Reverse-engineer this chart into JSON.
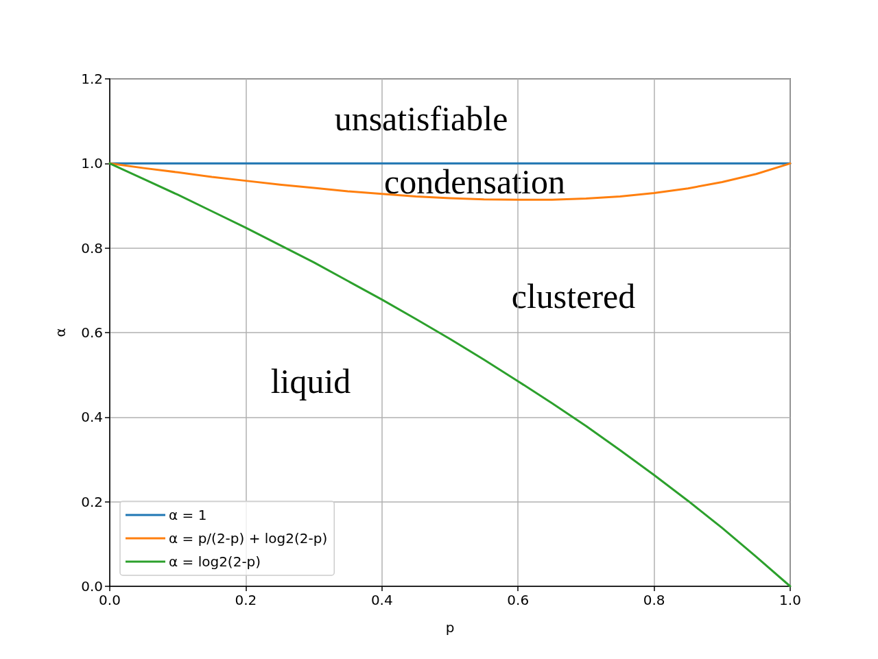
{
  "chart_data": {
    "type": "line",
    "xlabel": "p",
    "ylabel": "α",
    "xlim": [
      0,
      1
    ],
    "ylim": [
      0,
      1.2
    ],
    "xticks": [
      {
        "value": 0,
        "label": "0.0"
      },
      {
        "value": 0.2,
        "label": "0.2"
      },
      {
        "value": 0.4,
        "label": "0.4"
      },
      {
        "value": 0.6,
        "label": "0.6"
      },
      {
        "value": 0.8,
        "label": "0.8"
      },
      {
        "value": 1,
        "label": "1.0"
      }
    ],
    "yticks": [
      {
        "value": 0,
        "label": "0.0"
      },
      {
        "value": 0.2,
        "label": "0.2"
      },
      {
        "value": 0.4,
        "label": "0.4"
      },
      {
        "value": 0.6,
        "label": "0.6"
      },
      {
        "value": 0.8,
        "label": "0.8"
      },
      {
        "value": 1,
        "label": "1.0"
      },
      {
        "value": 1.2,
        "label": "1.2"
      }
    ],
    "x": [
      0,
      0.05,
      0.1,
      0.15,
      0.2,
      0.25,
      0.3,
      0.35,
      0.4,
      0.45,
      0.5,
      0.55,
      0.6,
      0.65,
      0.7,
      0.75,
      0.8,
      0.85,
      0.9,
      0.95,
      1
    ],
    "series": [
      {
        "name": "α = 1",
        "color": "#1f77b4",
        "values": [
          1,
          1,
          1,
          1,
          1,
          1,
          1,
          1,
          1,
          1,
          1,
          1,
          1,
          1,
          1,
          1,
          1,
          1,
          1,
          1,
          1
        ]
      },
      {
        "name": "α = p/(2-p) + log2(2-p)",
        "color": "#ff7f0e",
        "values": [
          1,
          0.989,
          0.979,
          0.968,
          0.959,
          0.95,
          0.942,
          0.934,
          0.928,
          0.922,
          0.918,
          0.915,
          0.914,
          0.914,
          0.917,
          0.922,
          0.93,
          0.941,
          0.956,
          0.975,
          1
        ]
      },
      {
        "name": "α = log2(2-p)",
        "color": "#2ca02c",
        "values": [
          1,
          0.963,
          0.926,
          0.887,
          0.848,
          0.807,
          0.766,
          0.722,
          0.678,
          0.632,
          0.585,
          0.536,
          0.485,
          0.433,
          0.379,
          0.322,
          0.263,
          0.202,
          0.138,
          0.07,
          0
        ]
      }
    ],
    "annotations": [
      "unsatisfiable",
      "condensation",
      "clustered",
      "liquid"
    ],
    "grid": true,
    "legend": "bottom left",
    "marker": "none",
    "line_style": "solid"
  }
}
